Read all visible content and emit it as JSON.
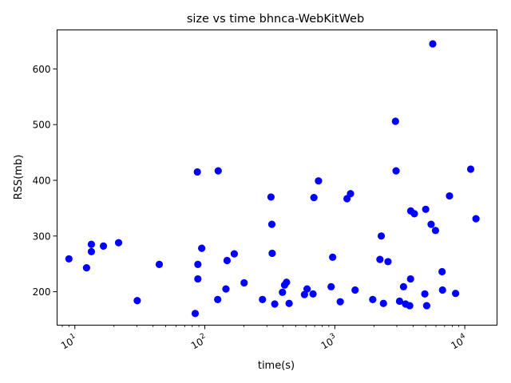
{
  "chart_data": {
    "type": "scatter",
    "title": "size vs time bhnca-WebKitWeb",
    "xlabel": "time(s)",
    "ylabel": "RSS(mb)",
    "xscale": "log",
    "xlim": [
      7.3,
      17700
    ],
    "ylim": [
      140,
      670
    ],
    "grid": false,
    "marker_color": "#0000ff",
    "x_ticks": [
      {
        "value": 10,
        "base": "10",
        "exp": "1"
      },
      {
        "value": 100,
        "base": "10",
        "exp": "2"
      },
      {
        "value": 1000,
        "base": "10",
        "exp": "3"
      },
      {
        "value": 10000,
        "base": "10",
        "exp": "4"
      }
    ],
    "y_ticks": [
      200,
      300,
      400,
      500,
      600
    ],
    "points": [
      {
        "x": 9,
        "y": 259
      },
      {
        "x": 12.3,
        "y": 243
      },
      {
        "x": 13.4,
        "y": 285
      },
      {
        "x": 13.4,
        "y": 272
      },
      {
        "x": 16.6,
        "y": 282
      },
      {
        "x": 21.7,
        "y": 288
      },
      {
        "x": 30.2,
        "y": 184
      },
      {
        "x": 44.6,
        "y": 249
      },
      {
        "x": 84.3,
        "y": 161
      },
      {
        "x": 87.6,
        "y": 415
      },
      {
        "x": 88.4,
        "y": 249
      },
      {
        "x": 88.4,
        "y": 223
      },
      {
        "x": 94.6,
        "y": 278
      },
      {
        "x": 126.7,
        "y": 417
      },
      {
        "x": 125.6,
        "y": 186
      },
      {
        "x": 145.3,
        "y": 205
      },
      {
        "x": 148.3,
        "y": 256
      },
      {
        "x": 168.5,
        "y": 268
      },
      {
        "x": 200.6,
        "y": 216
      },
      {
        "x": 277.6,
        "y": 186
      },
      {
        "x": 322.8,
        "y": 370
      },
      {
        "x": 327.8,
        "y": 321
      },
      {
        "x": 329.6,
        "y": 269
      },
      {
        "x": 344.9,
        "y": 178
      },
      {
        "x": 395.6,
        "y": 199
      },
      {
        "x": 410.6,
        "y": 212
      },
      {
        "x": 425.1,
        "y": 217
      },
      {
        "x": 445.1,
        "y": 179
      },
      {
        "x": 584.2,
        "y": 195
      },
      {
        "x": 611.9,
        "y": 205
      },
      {
        "x": 679.8,
        "y": 196
      },
      {
        "x": 690.6,
        "y": 369
      },
      {
        "x": 748.9,
        "y": 399
      },
      {
        "x": 936.7,
        "y": 209
      },
      {
        "x": 962,
        "y": 262
      },
      {
        "x": 1101.3,
        "y": 182
      },
      {
        "x": 1241,
        "y": 367
      },
      {
        "x": 1320.5,
        "y": 376
      },
      {
        "x": 1432.2,
        "y": 203
      },
      {
        "x": 1958,
        "y": 186
      },
      {
        "x": 2224,
        "y": 258
      },
      {
        "x": 2278.3,
        "y": 300
      },
      {
        "x": 2366.4,
        "y": 179
      },
      {
        "x": 2565.7,
        "y": 254
      },
      {
        "x": 2928.5,
        "y": 506
      },
      {
        "x": 2959.5,
        "y": 417
      },
      {
        "x": 3149.2,
        "y": 183
      },
      {
        "x": 3377.2,
        "y": 209
      },
      {
        "x": 3501.2,
        "y": 178
      },
      {
        "x": 3767.3,
        "y": 175
      },
      {
        "x": 3824.7,
        "y": 223
      },
      {
        "x": 3836.3,
        "y": 345
      },
      {
        "x": 4091.9,
        "y": 340
      },
      {
        "x": 4926.6,
        "y": 196
      },
      {
        "x": 5003,
        "y": 348
      },
      {
        "x": 5091.3,
        "y": 175
      },
      {
        "x": 5504.8,
        "y": 321
      },
      {
        "x": 5668,
        "y": 645
      },
      {
        "x": 5950.3,
        "y": 310
      },
      {
        "x": 6739.2,
        "y": 203
      },
      {
        "x": 6688.6,
        "y": 236
      },
      {
        "x": 7624.8,
        "y": 372
      },
      {
        "x": 8494.8,
        "y": 197
      },
      {
        "x": 11101,
        "y": 420
      },
      {
        "x": 12190.2,
        "y": 331
      }
    ]
  }
}
